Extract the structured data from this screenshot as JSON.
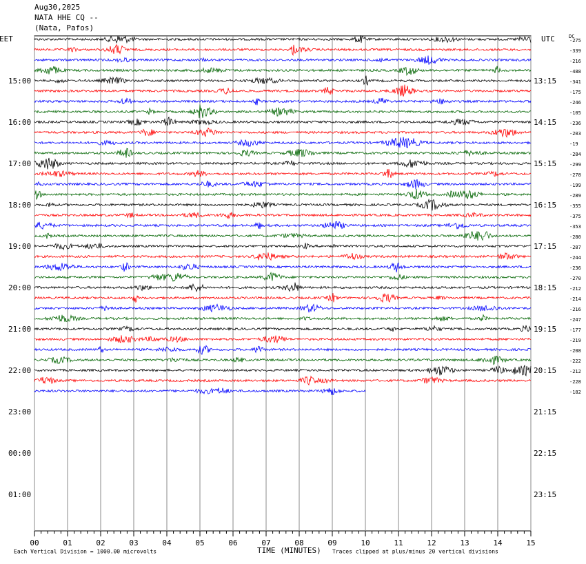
{
  "chart_data": {
    "type": "helicorder",
    "date": "Aug30,2025",
    "station": "NATA HHE CQ --",
    "location": "(Nata, Pafos)",
    "left_zone": "EET",
    "right_zone": "UTC",
    "dc_label": "DC",
    "left_labels": [
      "15:00",
      "16:00",
      "17:00",
      "18:00",
      "19:00",
      "20:00",
      "21:00",
      "22:00",
      "23:00",
      "00:00",
      "01:00"
    ],
    "right_labels": [
      "13:15",
      "14:15",
      "15:15",
      "16:15",
      "17:15",
      "18:15",
      "19:15",
      "20:15",
      "21:15",
      "22:15",
      "23:15"
    ],
    "dc_values": [
      -275,
      -339,
      -216,
      -488,
      -341,
      -175,
      -246,
      -105,
      -236,
      -203,
      -19,
      -284,
      -299,
      -278,
      -199,
      -289,
      -355,
      -375,
      -353,
      -280,
      -287,
      -244,
      -236,
      -270,
      -212,
      -214,
      -216,
      -247,
      -177,
      -219,
      -208,
      -222,
      -212,
      -228,
      -182
    ],
    "trace_colors": [
      "#000000",
      "#ff0000",
      "#0000ff",
      "#006400"
    ],
    "last_trace_end": 10,
    "xlabel": "TIME (MINUTES)",
    "xlim": [
      0,
      15
    ],
    "xticks": [
      {
        "value": 0,
        "label": "00"
      },
      {
        "value": 1,
        "label": "01"
      },
      {
        "value": 2,
        "label": "02"
      },
      {
        "value": 3,
        "label": "03"
      },
      {
        "value": 4,
        "label": "04"
      },
      {
        "value": 5,
        "label": "05"
      },
      {
        "value": 6,
        "label": "06"
      },
      {
        "value": 7,
        "label": "07"
      },
      {
        "value": 8,
        "label": "08"
      },
      {
        "value": 9,
        "label": "09"
      },
      {
        "value": 10,
        "label": "10"
      },
      {
        "value": 11,
        "label": "11"
      },
      {
        "value": 12,
        "label": "12"
      },
      {
        "value": 13,
        "label": "13"
      },
      {
        "value": 14,
        "label": "14"
      },
      {
        "value": 15,
        "label": "15"
      }
    ],
    "scale_note": "Each Vertical Division = 1000.00 microvolts",
    "clip_note": "Traces clipped at plus/minus 20 vertical divisions"
  }
}
